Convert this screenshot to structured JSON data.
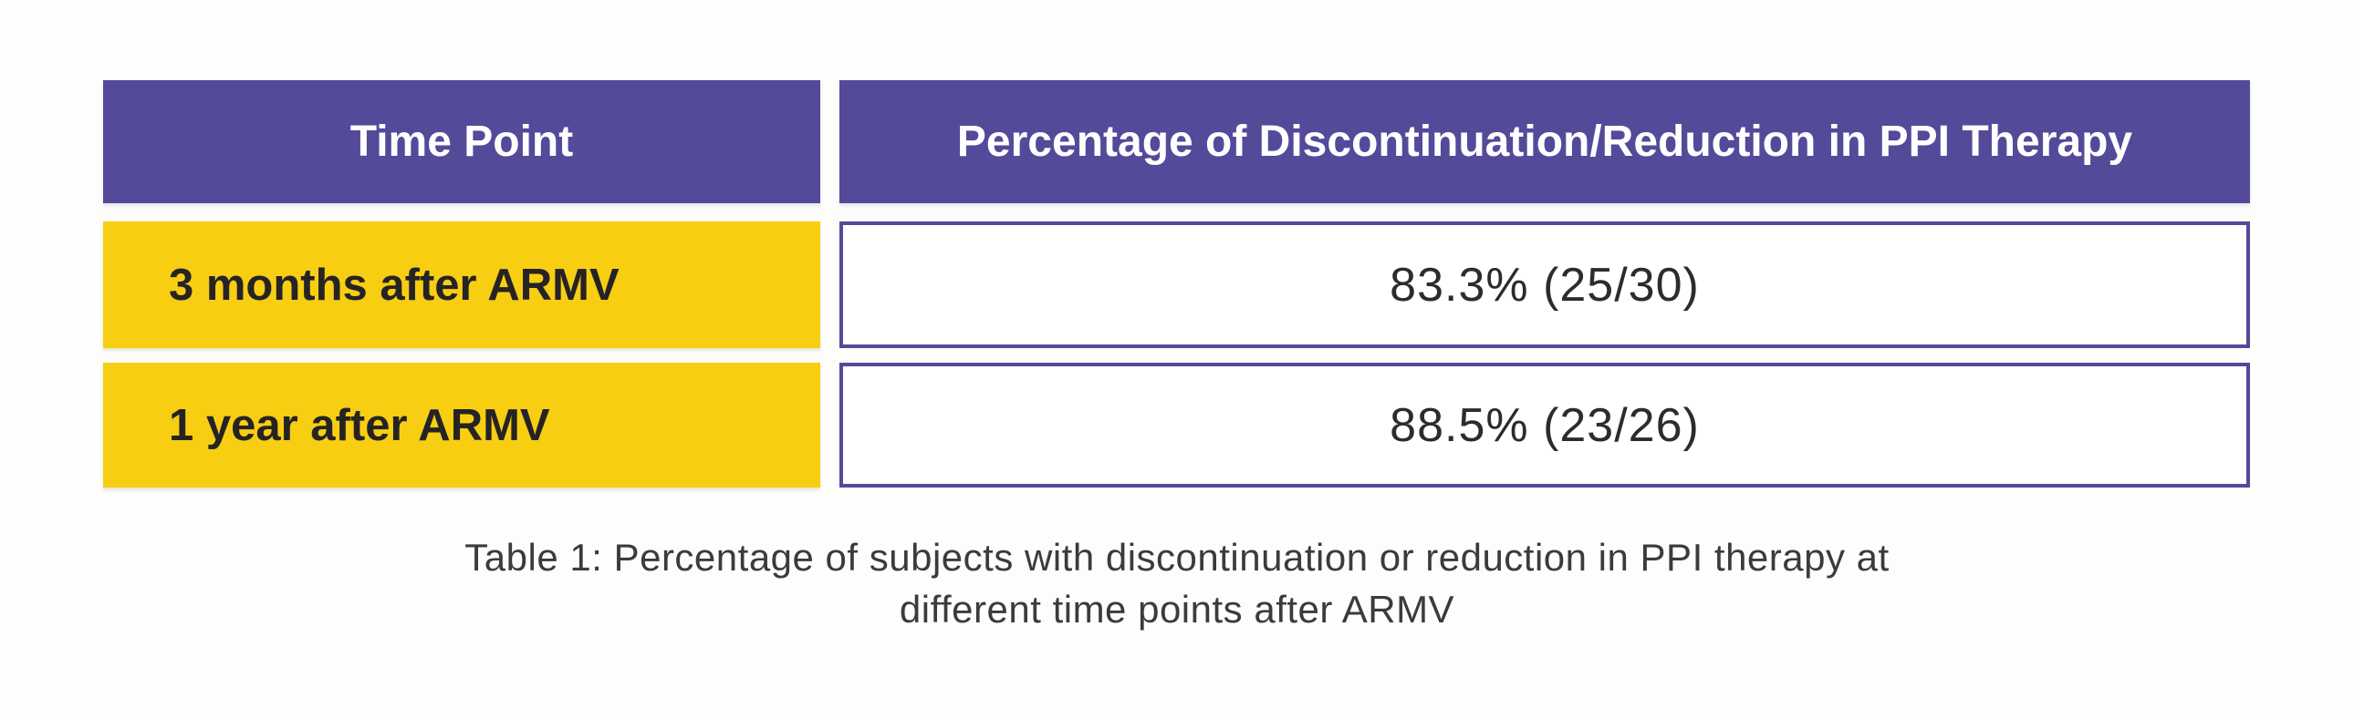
{
  "table": {
    "columns": [
      {
        "label": "Time Point"
      },
      {
        "label": "Percentage of Discontinuation/Reduction in PPI Therapy"
      }
    ],
    "rows": [
      {
        "time_point": "3 months after ARMV",
        "value": "83.3% (25/30)"
      },
      {
        "time_point": "1 year after ARMV",
        "value": "88.5% (23/26)"
      }
    ]
  },
  "caption": {
    "line1": "Table 1: Percentage of subjects with discontinuation or reduction in PPI therapy at",
    "line2": "different time points after ARMV"
  },
  "colors": {
    "page_bg": "#FDFDFB",
    "header_bg": "#544A9A",
    "header_text": "#FFFFFF",
    "row_label_bg": "#F7CE12",
    "row_label_text": "#262324",
    "value_cell_bg": "#FFFFFF",
    "value_cell_border": "#544A9A",
    "value_text": "#2E2A2E",
    "caption_text": "#3B3B3B"
  },
  "chart_data": {
    "type": "table",
    "title": "Table 1: Percentage of subjects with discontinuation or reduction in PPI therapy at different time points after ARMV",
    "columns": [
      "Time Point",
      "Percentage of Discontinuation/Reduction in PPI Therapy"
    ],
    "rows": [
      [
        "3 months after ARMV",
        "83.3% (25/30)"
      ],
      [
        "1 year after ARMV",
        "88.5% (23/26)"
      ]
    ],
    "values_numeric": [
      {
        "time_point": "3 months after ARMV",
        "percentage": 83.3,
        "numerator": 25,
        "denominator": 30
      },
      {
        "time_point": "1 year after ARMV",
        "percentage": 88.5,
        "numerator": 23,
        "denominator": 26
      }
    ]
  }
}
